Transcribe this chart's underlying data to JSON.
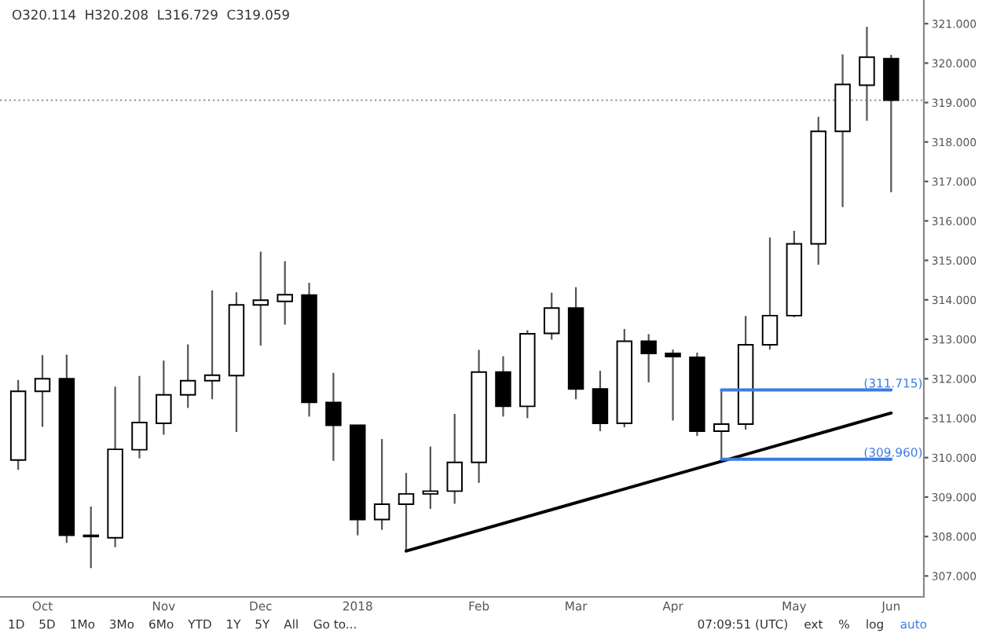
{
  "chart_data": {
    "type": "candlestick",
    "categories": [
      null,
      "Oct",
      null,
      null,
      null,
      null,
      "Nov",
      null,
      null,
      null,
      "Dec",
      null,
      null,
      null,
      "2018",
      null,
      null,
      null,
      null,
      "Feb",
      null,
      null,
      null,
      "Mar",
      null,
      null,
      null,
      "Apr",
      null,
      null,
      null,
      null,
      "May",
      null,
      null,
      null,
      "Jun"
    ],
    "ohlc": [
      [
        309.94,
        311.97,
        309.69,
        311.68
      ],
      [
        311.68,
        312.6,
        310.78,
        312.0
      ],
      [
        312.0,
        312.61,
        307.84,
        308.03
      ],
      [
        308.03,
        308.76,
        307.2,
        308.0
      ],
      [
        307.97,
        311.8,
        307.73,
        310.21
      ],
      [
        310.2,
        312.07,
        309.98,
        310.89
      ],
      [
        310.87,
        312.46,
        310.58,
        311.59
      ],
      [
        311.59,
        312.87,
        311.26,
        311.95
      ],
      [
        311.95,
        314.24,
        311.48,
        312.09
      ],
      [
        312.08,
        314.19,
        310.65,
        313.87
      ],
      [
        313.87,
        315.22,
        312.84,
        313.99
      ],
      [
        313.96,
        314.98,
        313.37,
        314.13
      ],
      [
        314.12,
        314.43,
        311.04,
        311.4
      ],
      [
        311.4,
        312.15,
        309.92,
        310.82
      ],
      [
        310.82,
        310.82,
        308.03,
        308.43
      ],
      [
        308.43,
        310.47,
        308.17,
        308.82
      ],
      [
        308.82,
        309.61,
        307.63,
        309.08
      ],
      [
        309.08,
        310.28,
        308.7,
        309.15
      ],
      [
        309.15,
        311.11,
        308.83,
        309.88
      ],
      [
        309.88,
        312.73,
        309.36,
        312.17
      ],
      [
        312.17,
        312.57,
        311.04,
        311.3
      ],
      [
        311.3,
        313.23,
        311.0,
        313.14
      ],
      [
        313.15,
        314.18,
        312.99,
        313.79
      ],
      [
        313.79,
        314.32,
        311.48,
        311.74
      ],
      [
        311.74,
        312.2,
        310.67,
        310.87
      ],
      [
        310.87,
        313.26,
        310.77,
        312.95
      ],
      [
        312.95,
        313.13,
        311.91,
        312.64
      ],
      [
        312.64,
        312.74,
        310.94,
        312.56
      ],
      [
        312.54,
        312.66,
        310.55,
        310.67
      ],
      [
        310.67,
        311.715,
        309.96,
        310.85
      ],
      [
        310.85,
        313.59,
        310.71,
        312.86
      ],
      [
        312.86,
        315.58,
        312.74,
        313.6
      ],
      [
        313.6,
        315.75,
        313.56,
        315.42
      ],
      [
        315.42,
        318.64,
        314.89,
        318.27
      ],
      [
        318.27,
        320.22,
        316.35,
        319.46
      ],
      [
        319.44,
        320.92,
        318.54,
        320.15
      ],
      [
        320.114,
        320.208,
        316.729,
        319.059
      ]
    ],
    "series": [
      {
        "type": "line",
        "color": "#000000",
        "values": [
          null,
          null,
          null,
          null,
          null,
          null,
          null,
          null,
          null,
          null,
          null,
          null,
          null,
          null,
          null,
          null,
          307.63,
          null,
          null,
          null,
          null,
          null,
          null,
          null,
          null,
          null,
          null,
          null,
          null,
          null,
          null,
          null,
          null,
          null,
          null,
          null,
          311.13
        ]
      },
      {
        "type": "line",
        "color": "#3d7be0",
        "values": [
          null,
          null,
          null,
          null,
          null,
          null,
          null,
          null,
          null,
          null,
          null,
          null,
          null,
          null,
          null,
          null,
          null,
          null,
          null,
          null,
          null,
          null,
          null,
          null,
          null,
          null,
          null,
          null,
          null,
          311.715,
          null,
          null,
          null,
          null,
          null,
          null,
          311.715
        ]
      },
      {
        "type": "line",
        "color": "#3d7be0",
        "values": [
          null,
          null,
          null,
          null,
          null,
          null,
          null,
          null,
          null,
          null,
          null,
          null,
          null,
          null,
          null,
          null,
          null,
          null,
          null,
          null,
          null,
          null,
          null,
          null,
          null,
          null,
          null,
          null,
          null,
          309.96,
          null,
          null,
          null,
          null,
          null,
          null,
          309.96
        ]
      }
    ],
    "ref_lines": [
      {
        "axis": "y",
        "value": 319.059,
        "color": "#9e9e9e",
        "line_style": "dotted"
      }
    ],
    "ylim": [
      306.47,
      321.6
    ],
    "yticks": [
      {
        "value": 307,
        "label": "307.000"
      },
      {
        "value": 308,
        "label": "308.000"
      },
      {
        "value": 309,
        "label": "309.000"
      },
      {
        "value": 310,
        "label": "310.000"
      },
      {
        "value": 311,
        "label": "311.000"
      },
      {
        "value": 312,
        "label": "312.000"
      },
      {
        "value": 313,
        "label": "313.000"
      },
      {
        "value": 314,
        "label": "314.000"
      },
      {
        "value": 315,
        "label": "315.000"
      },
      {
        "value": 316,
        "label": "316.000"
      },
      {
        "value": 317,
        "label": "317.000"
      },
      {
        "value": 318,
        "label": "318.000"
      },
      {
        "value": 319,
        "label": "319.000"
      },
      {
        "value": 320,
        "label": "320.000"
      },
      {
        "value": 321,
        "label": "321.000"
      }
    ],
    "grid": false,
    "annotations": [
      "O320.114  H320.208  L316.729  C319.059",
      {
        "text": "(311.715)",
        "x": "Jun",
        "y": 311.715
      },
      {
        "text": "(309.960)",
        "x": "Jun",
        "y": 309.96
      },
      "1D",
      "5D",
      "1Mo",
      "3Mo",
      "6Mo",
      "YTD",
      "1Y",
      "5Y",
      "All",
      "Go to...",
      "07:09:51 (UTC)",
      "ext",
      "%",
      "log",
      "auto"
    ]
  }
}
